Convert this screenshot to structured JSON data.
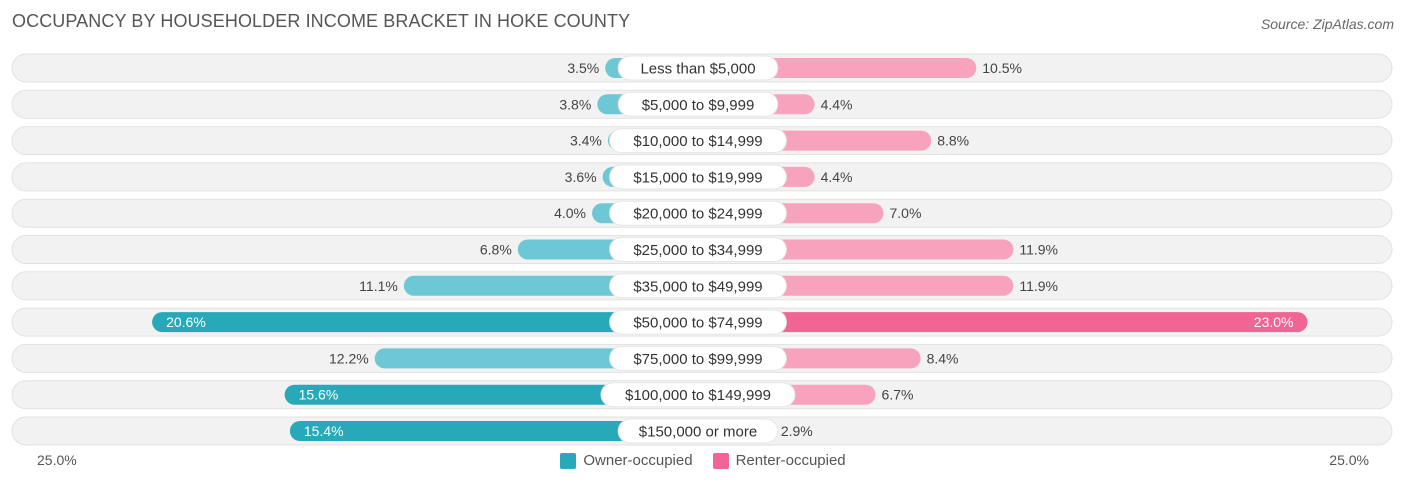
{
  "title": "OCCUPANCY BY HOUSEHOLDER INCOME BRACKET IN HOKE COUNTY",
  "source": "Source: ZipAtlas.com",
  "colors": {
    "owner": "#6ec7d4",
    "owner_strong": "#27a9b9",
    "renter": "#f7a3be",
    "renter_strong": "#f06593",
    "row_bg": "#f2f2f2"
  },
  "chart_data": {
    "type": "bar",
    "orientation": "horizontal-diverging",
    "categories": [
      "Less than $5,000",
      "$5,000 to $9,999",
      "$10,000 to $14,999",
      "$15,000 to $19,999",
      "$20,000 to $24,999",
      "$25,000 to $34,999",
      "$35,000 to $49,999",
      "$50,000 to $74,999",
      "$75,000 to $99,999",
      "$100,000 to $149,999",
      "$150,000 or more"
    ],
    "series": [
      {
        "name": "Owner-occupied",
        "values": [
          3.5,
          3.8,
          3.4,
          3.6,
          4.0,
          6.8,
          11.1,
          20.6,
          12.2,
          15.6,
          15.4
        ],
        "labels": [
          "3.5%",
          "3.8%",
          "3.4%",
          "3.6%",
          "4.0%",
          "6.8%",
          "11.1%",
          "20.6%",
          "12.2%",
          "15.6%",
          "15.4%"
        ]
      },
      {
        "name": "Renter-occupied",
        "values": [
          10.5,
          4.4,
          8.8,
          4.4,
          7.0,
          11.9,
          11.9,
          23.0,
          8.4,
          6.7,
          2.9
        ],
        "labels": [
          "10.5%",
          "4.4%",
          "8.8%",
          "4.4%",
          "7.0%",
          "11.9%",
          "11.9%",
          "23.0%",
          "8.4%",
          "6.7%",
          "2.9%"
        ]
      }
    ],
    "xlim": [
      -25,
      25
    ],
    "axis_min_label": "25.0%",
    "axis_max_label": "25.0%",
    "legend_position": "bottom-center"
  }
}
